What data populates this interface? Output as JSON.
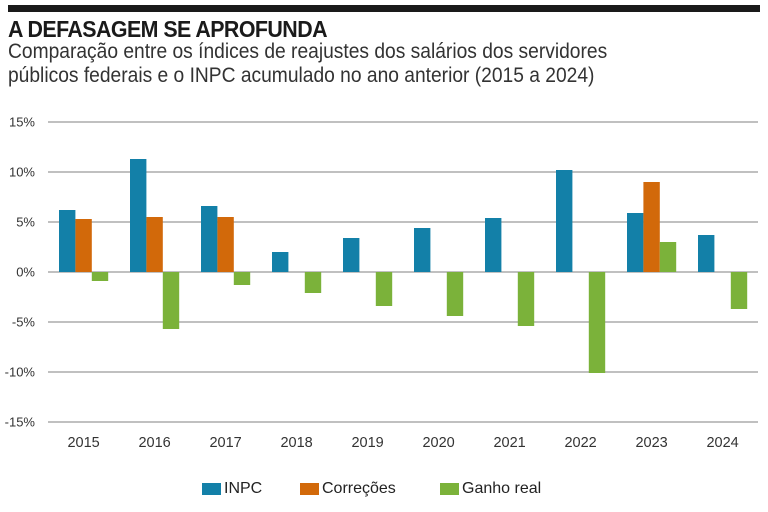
{
  "header": {
    "title": "A DEFASAGEM SE APROFUNDA",
    "subtitle_line1": "Comparação entre os índices de reajustes dos salários dos servidores",
    "subtitle_line2": "públicos federais e o INPC acumulado no ano anterior (2015 a 2024)"
  },
  "chart_data": {
    "type": "bar",
    "title": "A DEFASAGEM SE APROFUNDA",
    "subtitle": "Comparação entre os índices de reajustes dos salários dos servidores públicos federais e o INPC acumulado no ano anterior (2015 a 2024)",
    "xlabel": "",
    "ylabel": "",
    "categories": [
      "2015",
      "2016",
      "2017",
      "2018",
      "2019",
      "2020",
      "2021",
      "2022",
      "2023",
      "2024"
    ],
    "series": [
      {
        "name": "INPC",
        "color": "#1380a8",
        "values": [
          6.2,
          11.3,
          6.6,
          2.0,
          3.4,
          4.4,
          5.4,
          10.2,
          5.9,
          3.7
        ]
      },
      {
        "name": "Correções",
        "color": "#d2690a",
        "values": [
          5.3,
          5.5,
          5.5,
          null,
          null,
          null,
          null,
          null,
          9.0,
          null
        ]
      },
      {
        "name": "Ganho real",
        "color": "#7bb23a",
        "values": [
          -0.9,
          -5.7,
          -1.3,
          -2.1,
          -3.4,
          -4.4,
          -5.4,
          -10.1,
          3.0,
          -3.7
        ]
      }
    ],
    "ylim": [
      -15,
      15
    ],
    "yticks": [
      15,
      10,
      5,
      0,
      -5,
      -10,
      -15
    ],
    "ytick_labels": [
      "15%",
      "10%",
      "5%",
      "0%",
      "-5%",
      "-10%",
      "-15%"
    ],
    "grid": true,
    "legend_position": "bottom-center"
  }
}
